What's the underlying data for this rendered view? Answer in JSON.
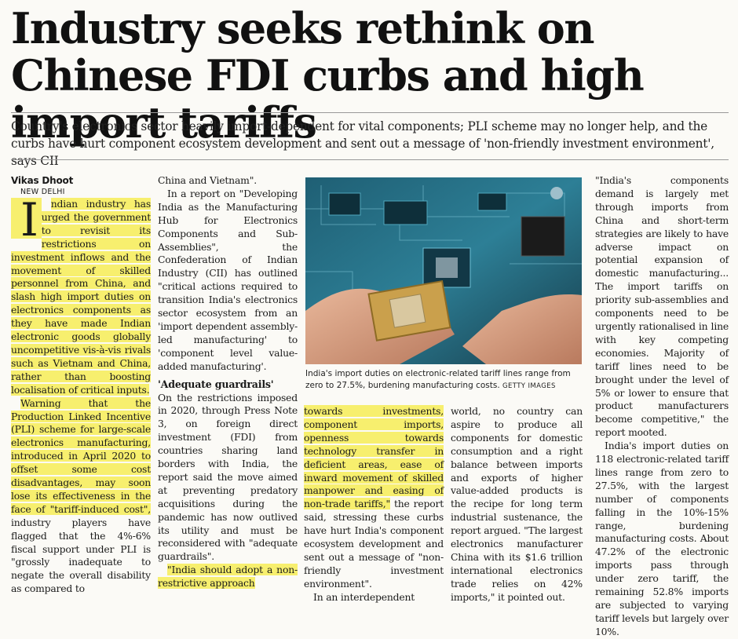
{
  "headline": "Industry seeks rethink on Chinese FDI curbs and high import tariffs",
  "standfirst": "Country's electronics sector heavily import-dependent for vital components; PLI scheme may no longer help, and the curbs have hurt component ecosystem development and sent out a message of 'non-friendly investment environment', says CII",
  "byline": "Vikas Dhoot",
  "dateline": "NEW DELHI",
  "col1": {
    "dropcap": "I",
    "lead": "ndian industry has urged the government to revisit its restrictions on investment inflows and the movement of skilled personnel from China, and slash high import duties on electronics components as they have made Indian electronic goods globally uncompetitive vis-à-vis rivals such as Vietnam and China, rather than boosting localisation of critical inputs.",
    "p2_hl": "Warning that the Production Linked Incentive (PLI) scheme for large-scale electronics manufacturing, introduced in April 2020 to offset some cost disadvantages, may soon lose its effectiveness in the face of \"tariff-induced cost\",",
    "p2_rest": " industry players have flagged that the 4%-6% fiscal support under PLI is \"grossly inadequate to negate the overall disability as compared to"
  },
  "col2": {
    "p1": "China and Vietnam\".",
    "p2": "In a report on \"Developing India as the Manufacturing Hub for Electronics Components and Sub-Assemblies\", the Confederation of Indian Industry (CII) has outlined \"critical actions required to transition India's electronics sector ecosystem from an 'import dependent assembly-led manufacturing' to 'component level value-added manufacturing'.",
    "subhead": "'Adequate guardrails'",
    "p3": "On the restrictions imposed in 2020, through Press Note 3, on foreign direct investment (FDI) from countries sharing land borders with India, the report said the move aimed at preventing predatory acquisitions during the pandemic has now outlived its utility and must be reconsidered with \"adequate guardrails\".",
    "p4_hl": "\"India should adopt a non-restrictive approach"
  },
  "col3": {
    "p1_hl": "towards investments, component imports, openness towards technology transfer in deficient areas, ease of inward movement of skilled manpower and easing of non-trade tariffs,\"",
    "p1_rest": " the report said, stressing these curbs have hurt India's component ecosystem development and sent out a message of \"non-friendly investment environment\".",
    "p2": "In an interdependent"
  },
  "col4": {
    "p1": "world, no country can aspire to produce all components for domestic consumption and a right balance between imports and exports of higher value-added products is the recipe for long term industrial sustenance, the report argued. \"The largest electronics manufacturer China with its $1.6 trillion international electronics trade relies on 42% imports,\" it pointed out."
  },
  "col5": {
    "p1": "\"India's components demand is largely met through imports from China and short-term strategies are likely to have adverse impact on potential expansion of domestic manufacturing... The import tariffs on priority sub-assemblies and components need to be urgently rationalised in line with key competing economies. Majority of tariff lines need to be brought under the level of 5% or lower to ensure that product manufacturers become competitive,\" the report mooted.",
    "p2": "India's import duties on 118 electronic-related tariff lines range from zero to 27.5%, with the largest number of components falling in the 10%-15% range, burdening manufacturing costs. About 47.2% of the electronic imports pass through under zero tariff, the remaining 52.8% imports are subjected to varying tariff levels but largely over 10%."
  },
  "caption": {
    "text": "India's import duties on electronic-related tariff lines range from zero to 27.5%, burdening manufacturing costs.",
    "credit": "GETTY IMAGES"
  }
}
